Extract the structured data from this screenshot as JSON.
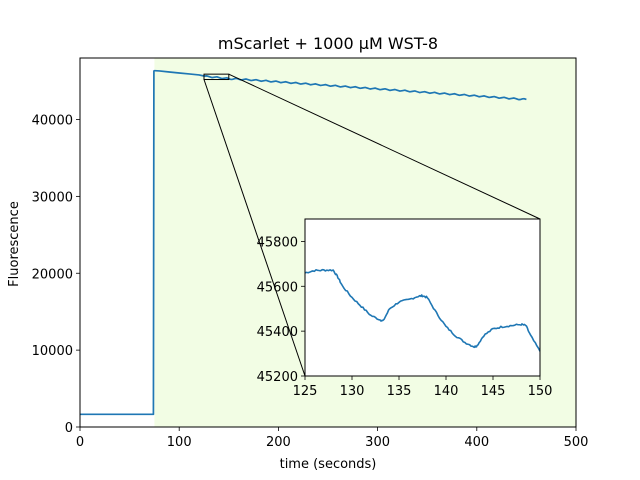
{
  "chart_data": [
    {
      "type": "line",
      "title": "mScarlet + 1000 µM WST-8",
      "xlabel": "time (seconds)",
      "ylabel": "Fluorescence",
      "xlim": [
        0,
        500
      ],
      "ylim": [
        0,
        48000
      ],
      "xticks": [
        0,
        100,
        200,
        300,
        400,
        500
      ],
      "yticks": [
        0,
        10000,
        20000,
        30000,
        40000
      ],
      "shaded_region": {
        "x_start": 75,
        "x_end": 500,
        "color": "#f2fde4"
      },
      "zoom_box": {
        "x": [
          125,
          150
        ],
        "y": [
          45200,
          45900
        ]
      },
      "series": [
        {
          "color": "#1f77b4",
          "x": [
            0,
            74,
            74.5,
            75,
            75.5,
            80,
            90,
            100,
            110,
            120,
            125,
            128,
            133,
            138,
            143,
            148,
            150,
            160,
            180,
            200,
            220,
            240,
            260,
            280,
            300,
            320,
            340,
            360,
            380,
            400,
            420,
            440,
            450
          ],
          "y": [
            1650,
            1650,
            46300,
            46350,
            46350,
            46320,
            46180,
            46050,
            45930,
            45800,
            45660,
            45670,
            45450,
            45550,
            45330,
            45420,
            45310,
            45250,
            45080,
            44900,
            44710,
            44530,
            44340,
            44160,
            43980,
            43800,
            43610,
            43430,
            43250,
            43060,
            42880,
            42690,
            42600
          ]
        }
      ]
    },
    {
      "type": "line",
      "title": "",
      "xlabel": "",
      "ylabel": "",
      "xlim": [
        125,
        150
      ],
      "ylim": [
        45200,
        45900
      ],
      "xticks": [
        125,
        130,
        135,
        140,
        145,
        150
      ],
      "yticks": [
        45200,
        45400,
        45600,
        45800
      ],
      "series": [
        {
          "color": "#1f77b4",
          "x": [
            125,
            126,
            127,
            128,
            128.5,
            129,
            130,
            131,
            132,
            133,
            133.3,
            134,
            135,
            136,
            137,
            137.5,
            138,
            139,
            140,
            141,
            142,
            143,
            143.3,
            144,
            145,
            146,
            147,
            148,
            148.5,
            149,
            150
          ],
          "y": [
            45660,
            45670,
            45672,
            45672,
            45640,
            45600,
            45550,
            45510,
            45470,
            45450,
            45445,
            45500,
            45530,
            45540,
            45555,
            45558,
            45550,
            45480,
            45420,
            45380,
            45350,
            45330,
            45335,
            45380,
            45410,
            45420,
            45425,
            45430,
            45425,
            45380,
            45310
          ]
        }
      ]
    }
  ]
}
